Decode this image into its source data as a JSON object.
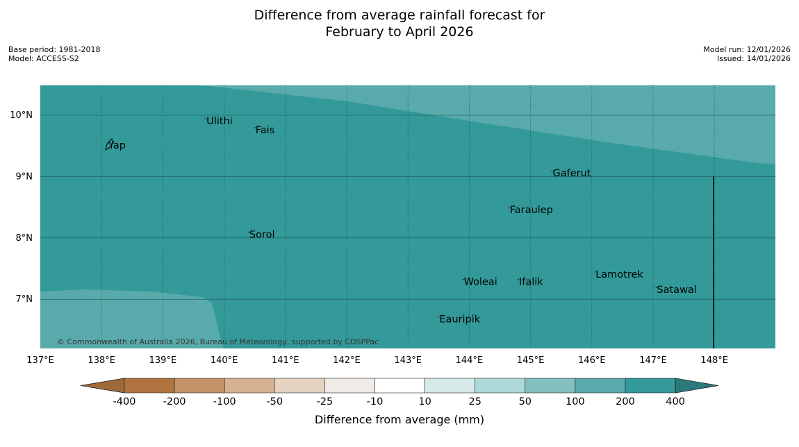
{
  "title": {
    "line1": "Difference from average rainfall forecast for",
    "line2": "February to April 2026"
  },
  "meta": {
    "base_period": "Base period: 1981-2018",
    "model": "Model: ACCESS-S2",
    "model_run": "Model run: 12/01/2026",
    "issued": "Issued: 14/01/2026"
  },
  "map": {
    "lon_labels": [
      "137°E",
      "138°E",
      "139°E",
      "140°E",
      "141°E",
      "142°E",
      "143°E",
      "144°E",
      "145°E",
      "146°E",
      "147°E",
      "148°E"
    ],
    "lat_labels": [
      "10°N",
      "9°N",
      "8°N",
      "7°N"
    ],
    "places": [
      {
        "name": "Yap",
        "lon": 138.1,
        "lat": 9.5
      },
      {
        "name": "Ulithi",
        "lon": 139.7,
        "lat": 9.9
      },
      {
        "name": "Fais",
        "lon": 140.5,
        "lat": 9.75
      },
      {
        "name": "Gaferut",
        "lon": 145.35,
        "lat": 9.05
      },
      {
        "name": "Faraulep",
        "lon": 144.65,
        "lat": 8.45
      },
      {
        "name": "Sorol",
        "lon": 140.4,
        "lat": 8.05
      },
      {
        "name": "Lamotrek",
        "lon": 146.05,
        "lat": 7.4
      },
      {
        "name": "Woleai",
        "lon": 143.9,
        "lat": 7.28
      },
      {
        "name": "Ifalik",
        "lon": 144.8,
        "lat": 7.28
      },
      {
        "name": "Satawal",
        "lon": 147.05,
        "lat": 7.15
      },
      {
        "name": "Eauripik",
        "lon": 143.5,
        "lat": 6.67
      }
    ],
    "copyright": "© Commonwealth of Australia 2026, Bureau of Meteorology, supported by COSPPac"
  },
  "legend": {
    "label": "Difference from average (mm)",
    "ticks": [
      "-400",
      "-200",
      "-100",
      "-50",
      "-25",
      "-10",
      "10",
      "25",
      "50",
      "100",
      "200",
      "400"
    ],
    "colors": [
      "#9e6a3a",
      "#b07440",
      "#c39267",
      "#d6b291",
      "#e5d2c1",
      "#f0ebe6",
      "#ffffff",
      "#d6eaea",
      "#add8d8",
      "#82c0be",
      "#59aaab",
      "#339999",
      "#2a7a7b"
    ]
  }
}
